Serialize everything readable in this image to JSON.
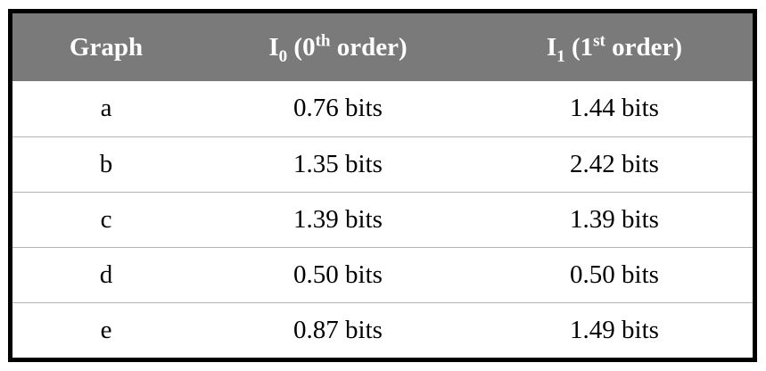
{
  "table": {
    "headers": [
      {
        "base": "Graph",
        "sub": "",
        "paren_open": "",
        "order_num": "",
        "order_sup": "",
        "order_word": ""
      },
      {
        "base": "I",
        "sub": "0",
        "paren_open": " (",
        "order_num": "0",
        "order_sup": "th",
        "order_word": " order)"
      },
      {
        "base": "I",
        "sub": "1",
        "paren_open": " (",
        "order_num": "1",
        "order_sup": "st",
        "order_word": " order)"
      }
    ],
    "rows": [
      {
        "graph": "a",
        "i0": "0.76 bits",
        "i1": "1.44 bits"
      },
      {
        "graph": "b",
        "i0": "1.35 bits",
        "i1": "2.42 bits"
      },
      {
        "graph": "c",
        "i0": "1.39 bits",
        "i1": "1.39 bits"
      },
      {
        "graph": "d",
        "i0": "0.50 bits",
        "i1": "0.50 bits"
      },
      {
        "graph": "e",
        "i0": "0.87 bits",
        "i1": "1.49 bits"
      }
    ]
  },
  "colors": {
    "header_bg": "#7a7a7a",
    "header_text": "#ffffff",
    "border": "#000000",
    "row_divider": "#b5b5b5"
  }
}
